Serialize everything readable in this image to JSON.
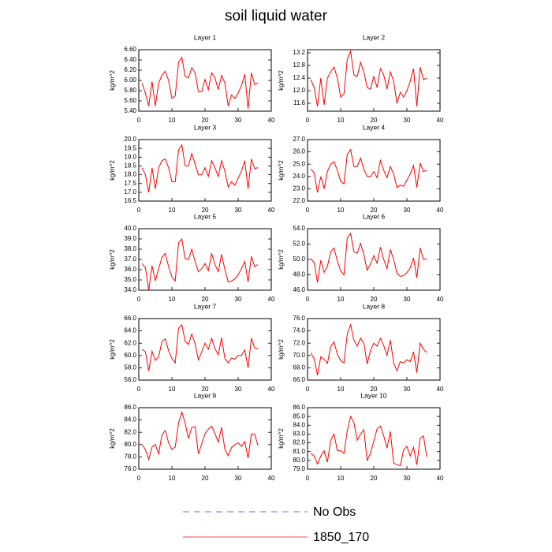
{
  "title": "soil liquid water",
  "legend": [
    {
      "label": "No Obs",
      "color": "#4444cc",
      "dash": true
    },
    {
      "label": "1850_170",
      "color": "#ff0000"
    }
  ],
  "chart_data": [
    {
      "type": "line",
      "title": "Layer 1",
      "ylabel": "kg/m^2",
      "x": [
        1,
        2,
        3,
        4,
        5,
        6,
        7,
        8,
        9,
        10,
        11,
        12,
        13,
        14,
        15,
        16,
        17,
        18,
        19,
        20,
        21,
        22,
        23,
        24,
        25,
        26,
        27,
        28,
        29,
        30,
        31,
        32,
        33,
        34,
        35,
        36
      ],
      "series": [
        {
          "color": "#ff0000",
          "values": [
            5.95,
            5.75,
            5.5,
            5.98,
            5.5,
            5.95,
            6.1,
            6.18,
            6.0,
            5.65,
            5.7,
            6.35,
            6.45,
            6.08,
            6.05,
            6.25,
            6.15,
            5.78,
            5.78,
            6.02,
            5.82,
            6.15,
            6.05,
            5.82,
            6.1,
            5.95,
            5.5,
            5.72,
            5.65,
            5.75,
            5.9,
            6.12,
            5.45,
            6.15,
            5.92,
            5.95
          ]
        }
      ],
      "xlim": [
        0,
        40
      ],
      "xticks": [
        0,
        10,
        20,
        30,
        40
      ],
      "ylim": [
        5.4,
        6.6
      ],
      "yticks": [
        {
          "value": 5.4,
          "label": "5.40"
        },
        {
          "value": 5.6,
          "label": "5.60"
        },
        {
          "value": 5.8,
          "label": "5.80"
        },
        {
          "value": 6.0,
          "label": "6.00"
        },
        {
          "value": 6.2,
          "label": "6.20"
        },
        {
          "value": 6.4,
          "label": "6.40"
        },
        {
          "value": 6.6,
          "label": "6.60"
        }
      ]
    },
    {
      "type": "line",
      "title": "Layer 2",
      "ylabel": "kg/m^2",
      "x": [
        1,
        2,
        3,
        4,
        5,
        6,
        7,
        8,
        9,
        10,
        11,
        12,
        13,
        14,
        15,
        16,
        17,
        18,
        19,
        20,
        21,
        22,
        23,
        24,
        25,
        26,
        27,
        28,
        29,
        30,
        31,
        32,
        33,
        34,
        35,
        36
      ],
      "series": [
        {
          "color": "#ff0000",
          "values": [
            12.35,
            12.1,
            11.5,
            12.4,
            11.55,
            12.4,
            12.6,
            12.75,
            12.4,
            11.8,
            11.9,
            13.0,
            13.25,
            12.5,
            12.45,
            12.9,
            12.6,
            12.1,
            12.05,
            12.45,
            12.1,
            12.7,
            12.5,
            12.05,
            12.6,
            12.3,
            11.6,
            11.95,
            11.8,
            12.0,
            12.3,
            12.7,
            11.5,
            12.75,
            12.35,
            12.4
          ]
        }
      ],
      "xlim": [
        0,
        40
      ],
      "xticks": [
        0,
        10,
        20,
        30,
        40
      ],
      "ylim": [
        11.35,
        13.3
      ],
      "yticks": [
        11.6,
        {
          "value": 12,
          "label": "12.0"
        },
        12.4,
        12.8,
        13.2
      ]
    },
    {
      "type": "line",
      "title": "Layer 3",
      "ylabel": "kg/m^2",
      "x": [
        1,
        2,
        3,
        4,
        5,
        6,
        7,
        8,
        9,
        10,
        11,
        12,
        13,
        14,
        15,
        16,
        17,
        18,
        19,
        20,
        21,
        22,
        23,
        24,
        25,
        26,
        27,
        28,
        29,
        30,
        31,
        32,
        33,
        34,
        35,
        36
      ],
      "series": [
        {
          "color": "#ff0000",
          "values": [
            18.4,
            18.0,
            17.0,
            18.4,
            17.2,
            18.4,
            18.8,
            18.9,
            18.4,
            17.6,
            17.6,
            19.4,
            19.7,
            18.5,
            18.5,
            19.2,
            18.6,
            18.0,
            18.0,
            18.4,
            17.9,
            18.8,
            18.4,
            17.9,
            18.8,
            18.2,
            17.3,
            17.6,
            17.4,
            17.8,
            18.2,
            18.8,
            17.2,
            18.9,
            18.35,
            18.4
          ]
        }
      ],
      "xlim": [
        0,
        40
      ],
      "xticks": [
        0,
        10,
        20,
        30,
        40
      ],
      "ylim": [
        16.5,
        20
      ],
      "yticks": [
        16.5,
        {
          "value": 17,
          "label": "17.0"
        },
        17.5,
        {
          "value": 18,
          "label": "18.0"
        },
        18.5,
        {
          "value": 19,
          "label": "19.0"
        },
        19.5,
        {
          "value": 20,
          "label": "20.0"
        }
      ]
    },
    {
      "type": "line",
      "title": "Layer 4",
      "ylabel": "kg/m^2",
      "x": [
        1,
        2,
        3,
        4,
        5,
        6,
        7,
        8,
        9,
        10,
        11,
        12,
        13,
        14,
        15,
        16,
        17,
        18,
        19,
        20,
        21,
        22,
        23,
        24,
        25,
        26,
        27,
        28,
        29,
        30,
        31,
        32,
        33,
        34,
        35,
        36
      ],
      "series": [
        {
          "color": "#ff0000",
          "values": [
            24.6,
            24.3,
            22.7,
            24.0,
            23.0,
            24.4,
            25.0,
            25.2,
            24.5,
            23.6,
            23.4,
            25.8,
            26.2,
            24.8,
            24.8,
            25.5,
            24.6,
            24.0,
            24.0,
            24.4,
            23.9,
            25.3,
            24.5,
            23.9,
            24.8,
            24.2,
            23.1,
            23.3,
            23.2,
            23.7,
            24.2,
            24.9,
            23.1,
            25.1,
            24.4,
            24.5
          ]
        }
      ],
      "xlim": [
        0,
        40
      ],
      "xticks": [
        0,
        10,
        20,
        30,
        40
      ],
      "ylim": [
        22,
        27
      ],
      "yticks": [
        {
          "value": 22,
          "label": "22.0"
        },
        {
          "value": 23,
          "label": "23.0"
        },
        {
          "value": 24,
          "label": "24.0"
        },
        {
          "value": 25,
          "label": "25.0"
        },
        {
          "value": 26,
          "label": "26.0"
        },
        {
          "value": 27,
          "label": "27.0"
        }
      ]
    },
    {
      "type": "line",
      "title": "Layer 5",
      "ylabel": "kg/m^2",
      "x": [
        1,
        2,
        3,
        4,
        5,
        6,
        7,
        8,
        9,
        10,
        11,
        12,
        13,
        14,
        15,
        16,
        17,
        18,
        19,
        20,
        21,
        22,
        23,
        24,
        25,
        26,
        27,
        28,
        29,
        30,
        31,
        32,
        33,
        34,
        35,
        36
      ],
      "series": [
        {
          "color": "#ff0000",
          "values": [
            36.6,
            36.2,
            34.0,
            36.4,
            34.9,
            36.1,
            37.2,
            37.6,
            36.3,
            35.3,
            34.9,
            38.6,
            39.0,
            37.1,
            37.0,
            38.0,
            36.8,
            35.8,
            36.1,
            36.6,
            35.9,
            37.6,
            36.5,
            35.8,
            37.5,
            36.0,
            34.8,
            34.9,
            35.1,
            35.5,
            36.1,
            36.8,
            34.8,
            37.3,
            36.3,
            36.5
          ]
        }
      ],
      "xlim": [
        0,
        40
      ],
      "xticks": [
        0,
        10,
        20,
        30,
        40
      ],
      "ylim": [
        34,
        40
      ],
      "yticks": [
        {
          "value": 34,
          "label": "34.0"
        },
        {
          "value": 35,
          "label": "35.0"
        },
        {
          "value": 36,
          "label": "36.0"
        },
        {
          "value": 37,
          "label": "37.0"
        },
        {
          "value": 38,
          "label": "38.0"
        },
        {
          "value": 39,
          "label": "39.0"
        },
        {
          "value": 40,
          "label": "40.0"
        }
      ]
    },
    {
      "type": "line",
      "title": "Layer 6",
      "ylabel": "kg/m^2",
      "x": [
        1,
        2,
        3,
        4,
        5,
        6,
        7,
        8,
        9,
        10,
        11,
        12,
        13,
        14,
        15,
        16,
        17,
        18,
        19,
        20,
        21,
        22,
        23,
        24,
        25,
        26,
        27,
        28,
        29,
        30,
        31,
        32,
        33,
        34,
        35,
        36
      ],
      "series": [
        {
          "color": "#ff0000",
          "values": [
            50.1,
            49.6,
            47.0,
            49.9,
            48.3,
            49.1,
            51.0,
            51.5,
            49.8,
            48.5,
            48.0,
            52.8,
            53.4,
            51.0,
            50.8,
            52.1,
            50.6,
            48.6,
            49.4,
            50.5,
            49.5,
            51.6,
            50.0,
            48.8,
            51.3,
            50.0,
            48.2,
            47.8,
            47.9,
            48.3,
            48.9,
            50.2,
            47.6,
            51.5,
            50.0,
            50.1
          ]
        }
      ],
      "xlim": [
        0,
        40
      ],
      "xticks": [
        0,
        10,
        20,
        30,
        40
      ],
      "ylim": [
        46,
        54
      ],
      "yticks": [
        {
          "value": 46,
          "label": "46.0"
        },
        {
          "value": 48,
          "label": "48.0"
        },
        {
          "value": 50,
          "label": "50.0"
        },
        {
          "value": 52,
          "label": "52.0"
        },
        {
          "value": 54,
          "label": "54.0"
        }
      ]
    },
    {
      "type": "line",
      "title": "Layer 7",
      "ylabel": "kg/m^2",
      "x": [
        1,
        2,
        3,
        4,
        5,
        6,
        7,
        8,
        9,
        10,
        11,
        12,
        13,
        14,
        15,
        16,
        17,
        18,
        19,
        20,
        21,
        22,
        23,
        24,
        25,
        26,
        27,
        28,
        29,
        30,
        31,
        32,
        33,
        34,
        35,
        36
      ],
      "series": [
        {
          "color": "#ff0000",
          "values": [
            61.0,
            60.6,
            57.5,
            60.7,
            59.2,
            59.8,
            62.3,
            62.7,
            60.8,
            59.5,
            58.8,
            64.4,
            65.0,
            62.3,
            61.8,
            63.5,
            61.9,
            59.3,
            60.6,
            62.0,
            61.0,
            62.8,
            61.1,
            60.1,
            62.9,
            59.5,
            58.8,
            59.6,
            59.4,
            60.0,
            60.0,
            60.9,
            58.0,
            62.8,
            61.2,
            61.1
          ]
        }
      ],
      "xlim": [
        0,
        40
      ],
      "xticks": [
        0,
        10,
        20,
        30,
        40
      ],
      "ylim": [
        56,
        66
      ],
      "yticks": [
        {
          "value": 56,
          "label": "56.0"
        },
        {
          "value": 58,
          "label": "58.0"
        },
        {
          "value": 60,
          "label": "60.0"
        },
        {
          "value": 62,
          "label": "62.0"
        },
        {
          "value": 64,
          "label": "64.0"
        },
        {
          "value": 66,
          "label": "66.0"
        }
      ]
    },
    {
      "type": "line",
      "title": "Layer 8",
      "ylabel": "kg/m^2",
      "x": [
        1,
        2,
        3,
        4,
        5,
        6,
        7,
        8,
        9,
        10,
        11,
        12,
        13,
        14,
        15,
        16,
        17,
        18,
        19,
        20,
        21,
        22,
        23,
        24,
        25,
        26,
        27,
        28,
        29,
        30,
        31,
        32,
        33,
        34,
        35,
        36
      ],
      "series": [
        {
          "color": "#ff0000",
          "values": [
            70.4,
            69.5,
            66.8,
            69.8,
            69.4,
            68.7,
            71.5,
            72.2,
            70.2,
            69.2,
            68.8,
            73.5,
            75.0,
            72.5,
            71.5,
            72.8,
            72.0,
            68.6,
            70.8,
            72.0,
            71.5,
            72.8,
            71.6,
            70.0,
            72.5,
            68.8,
            67.5,
            69.0,
            68.8,
            69.3,
            69.0,
            70.6,
            67.2,
            72.0,
            71.0,
            70.5
          ]
        }
      ],
      "xlim": [
        0,
        40
      ],
      "xticks": [
        0,
        10,
        20,
        30,
        40
      ],
      "ylim": [
        66,
        76
      ],
      "yticks": [
        {
          "value": 66,
          "label": "66.0"
        },
        {
          "value": 68,
          "label": "68.0"
        },
        {
          "value": 70,
          "label": "70.0"
        },
        {
          "value": 72,
          "label": "72.0"
        },
        {
          "value": 74,
          "label": "74.0"
        },
        {
          "value": 76,
          "label": "76.0"
        }
      ]
    },
    {
      "type": "line",
      "title": "Layer 9",
      "ylabel": "kg/m^2",
      "x": [
        1,
        2,
        3,
        4,
        5,
        6,
        7,
        8,
        9,
        10,
        11,
        12,
        13,
        14,
        15,
        16,
        17,
        18,
        19,
        20,
        21,
        22,
        23,
        24,
        25,
        26,
        27,
        28,
        29,
        30,
        31,
        32,
        33,
        34,
        35,
        36
      ],
      "series": [
        {
          "color": "#ff0000",
          "values": [
            80.0,
            79.2,
            77.6,
            79.6,
            80.0,
            78.5,
            81.6,
            82.3,
            80.3,
            79.2,
            79.6,
            83.5,
            85.3,
            83.5,
            81.0,
            82.8,
            82.9,
            78.5,
            80.1,
            81.8,
            82.5,
            83.0,
            81.8,
            80.4,
            82.8,
            79.2,
            78.2,
            79.5,
            80.0,
            80.3,
            79.7,
            80.5,
            77.8,
            81.7,
            81.7,
            79.8
          ]
        }
      ],
      "xlim": [
        0,
        40
      ],
      "xticks": [
        0,
        10,
        20,
        30,
        40
      ],
      "ylim": [
        76,
        86
      ],
      "yticks": [
        {
          "value": 76,
          "label": "76.0"
        },
        {
          "value": 78,
          "label": "78.0"
        },
        {
          "value": 80,
          "label": "80.0"
        },
        {
          "value": 82,
          "label": "82.0"
        },
        {
          "value": 84,
          "label": "84.0"
        },
        {
          "value": 86,
          "label": "86.0"
        }
      ]
    },
    {
      "type": "line",
      "title": "Layer 10",
      "ylabel": "kg/m^2",
      "x": [
        1,
        2,
        3,
        4,
        5,
        6,
        7,
        8,
        9,
        10,
        11,
        12,
        13,
        14,
        15,
        16,
        17,
        18,
        19,
        20,
        21,
        22,
        23,
        24,
        25,
        26,
        27,
        28,
        29,
        30,
        31,
        32,
        33,
        34,
        35,
        36
      ],
      "series": [
        {
          "color": "#ff0000",
          "values": [
            80.8,
            80.5,
            79.6,
            80.5,
            81.1,
            79.8,
            82.3,
            83.0,
            81.1,
            81.1,
            80.8,
            83.4,
            85.0,
            84.3,
            82.3,
            83.0,
            83.5,
            80.0,
            80.8,
            82.2,
            83.6,
            83.9,
            82.8,
            81.4,
            83.3,
            79.7,
            79.5,
            79.4,
            81.2,
            81.6,
            80.5,
            81.5,
            79.5,
            82.5,
            82.8,
            80.4
          ]
        }
      ],
      "xlim": [
        0,
        40
      ],
      "xticks": [
        0,
        10,
        20,
        30,
        40
      ],
      "ylim": [
        79,
        86
      ],
      "yticks": [
        {
          "value": 79,
          "label": "79.0"
        },
        {
          "value": 80,
          "label": "80.0"
        },
        {
          "value": 81,
          "label": "81.0"
        },
        {
          "value": 82,
          "label": "82.0"
        },
        {
          "value": 83,
          "label": "83.0"
        },
        {
          "value": 84,
          "label": "84.0"
        },
        {
          "value": 85,
          "label": "85.0"
        },
        {
          "value": 86,
          "label": "86.0"
        }
      ]
    }
  ]
}
